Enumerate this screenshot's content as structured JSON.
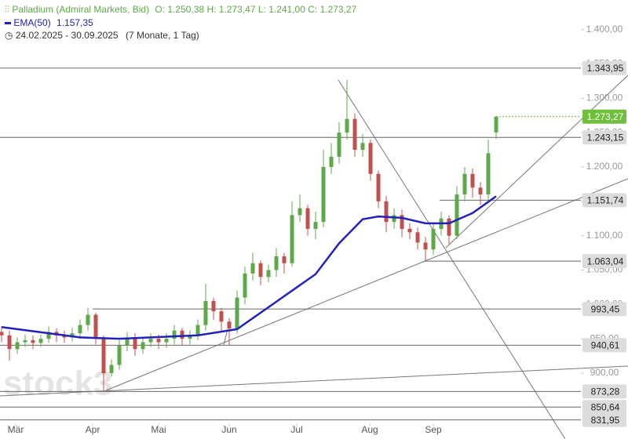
{
  "chart_data": {
    "type": "candlestick",
    "title": "Palladium (Admiral Markets, Bid)",
    "ohlc_text": "O: 1.250,38  H: 1.273,47  L: 1.241,00  C: 1.273,27",
    "range_text": "24.02.2025 - 30.09.2025",
    "span_text": "(7 Monate, 1 Tag)",
    "watermark": "stock3",
    "up_color": "#5da84a",
    "down_color": "#c0504d",
    "open": [
      960,
      955,
      935,
      945,
      948,
      944,
      950,
      960,
      955,
      952,
      958,
      970,
      985,
      950,
      900,
      912,
      940,
      952,
      935,
      945,
      950,
      945,
      950,
      962,
      950,
      955,
      970,
      1005,
      990,
      975,
      965,
      1010,
      1045,
      1060,
      1040,
      1050,
      1070,
      1060,
      1130,
      1140,
      1110,
      1120,
      1200,
      1215,
      1250,
      1270,
      1225,
      1235,
      1190,
      1150,
      1120,
      1130,
      1110,
      1105,
      1090,
      1080,
      1110,
      1125,
      1100,
      1160,
      1190,
      1170,
      1160,
      1250.38
    ],
    "high": [
      968,
      962,
      952,
      956,
      955,
      956,
      968,
      965,
      962,
      966,
      978,
      995,
      988,
      955,
      920,
      948,
      960,
      958,
      952,
      958,
      956,
      958,
      970,
      966,
      962,
      978,
      1030,
      1010,
      995,
      980,
      1020,
      1055,
      1075,
      1064,
      1058,
      1082,
      1075,
      1150,
      1160,
      1145,
      1135,
      1225,
      1235,
      1265,
      1327,
      1278,
      1248,
      1240,
      1195,
      1158,
      1140,
      1138,
      1118,
      1112,
      1098,
      1118,
      1135,
      1130,
      1172,
      1200,
      1198,
      1178,
      1240,
      1273.47
    ],
    "low": [
      945,
      918,
      928,
      938,
      935,
      938,
      944,
      945,
      944,
      946,
      950,
      962,
      942,
      873.28,
      895,
      905,
      932,
      925,
      928,
      938,
      935,
      937,
      942,
      940,
      942,
      948,
      962,
      978,
      962,
      940.61,
      958,
      1000,
      1035,
      1028,
      1032,
      1040,
      1045,
      1055,
      1120,
      1100,
      1095,
      1112,
      1190,
      1205,
      1240,
      1215,
      1215,
      1180,
      1140,
      1105,
      1110,
      1098,
      1095,
      1080,
      1063.04,
      1072,
      1100,
      1088,
      1095,
      1150,
      1155,
      1145,
      1150,
      1241.0
    ],
    "close": [
      955,
      935,
      945,
      948,
      944,
      950,
      960,
      955,
      952,
      958,
      970,
      985,
      950,
      900,
      912,
      940,
      952,
      935,
      945,
      950,
      945,
      950,
      962,
      950,
      955,
      970,
      1005,
      990,
      975,
      965,
      1010,
      1045,
      1060,
      1040,
      1050,
      1070,
      1060,
      1130,
      1140,
      1110,
      1120,
      1200,
      1215,
      1250,
      1270,
      1225,
      1235,
      1190,
      1150,
      1120,
      1130,
      1110,
      1105,
      1090,
      1080,
      1110,
      1125,
      1100,
      1160,
      1190,
      1170,
      1160,
      1220,
      1273.27
    ],
    "series": [
      {
        "name": "EMA(50)",
        "value_label": "1.157,35",
        "color": "#2222bb",
        "x": [
          0,
          10,
          15,
          25,
          30,
          35,
          40,
          43,
          46,
          48,
          51,
          54,
          57,
          60,
          63
        ],
        "values": [
          967,
          952,
          950,
          955,
          964,
          1004,
          1044,
          1089,
          1124,
          1128,
          1126,
          1118,
          1118,
          1133,
          1157.35
        ]
      }
    ],
    "xlim": [
      -0.2,
      73.8
    ],
    "xticks": [
      {
        "value": 1.8,
        "label": "Mär"
      },
      {
        "value": 11.6,
        "label": "Apr"
      },
      {
        "value": 20,
        "label": "Mai"
      },
      {
        "value": 29,
        "label": "Jun"
      },
      {
        "value": 37.6,
        "label": "Jul"
      },
      {
        "value": 46.9,
        "label": "Aug"
      },
      {
        "value": 55,
        "label": "Sep"
      }
    ],
    "ylim": [
      827,
      1443
    ],
    "yticks": [
      {
        "value": 900,
        "label": "900,00"
      },
      {
        "value": 950,
        "label": "950,00"
      },
      {
        "value": 1000,
        "label": "1.000,00"
      },
      {
        "value": 1050,
        "label": "1.050,00"
      },
      {
        "value": 1100,
        "label": "1.100,00"
      },
      {
        "value": 1150,
        "label": "1.150,00"
      },
      {
        "value": 1200,
        "label": "1.200,00"
      },
      {
        "value": 1250,
        "label": "1.250,00"
      },
      {
        "value": 1300,
        "label": "1.300,00"
      },
      {
        "value": 1350,
        "label": "1.350,00"
      },
      {
        "value": 1400,
        "label": "1.400,00"
      }
    ],
    "levels": {
      "values": [
        1343.95,
        1243.15,
        1151.74,
        1063.04,
        993.45,
        940.61,
        873.28,
        850.64,
        831.95
      ],
      "value_labels": [
        "1.343,95",
        "1.243,15",
        "1.151,74",
        "1.063,04",
        "993,45",
        "940,61",
        "873,28",
        "850,64",
        "831,95"
      ]
    },
    "last": {
      "value": 1273.27,
      "label": "1.273,27",
      "color": "#6fbf3c"
    }
  }
}
